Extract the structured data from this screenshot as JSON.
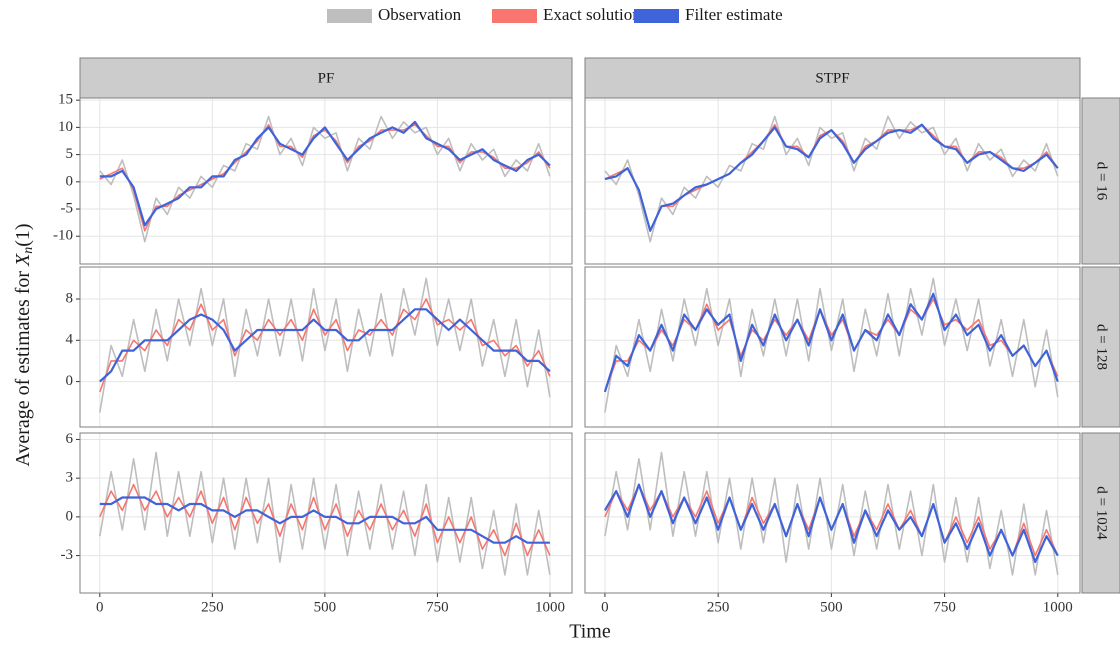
{
  "legend": [
    {
      "name": "Observation",
      "color": "#bebebe"
    },
    {
      "name": "Exact solution",
      "color": "#f8766d"
    },
    {
      "name": "Filter estimate",
      "color": "#3f63d9"
    }
  ],
  "x_label": "Time",
  "y_label": [
    "Average of estimates for ",
    "X",
    "n",
    "(1)"
  ],
  "columns": [
    "PF",
    "STPF"
  ],
  "rows": [
    "d = 16",
    "d = 128",
    "d = 1024"
  ],
  "x": [
    0,
    25,
    50,
    75,
    100,
    125,
    150,
    175,
    200,
    225,
    250,
    275,
    300,
    325,
    350,
    375,
    400,
    425,
    450,
    475,
    500,
    525,
    550,
    575,
    600,
    625,
    650,
    675,
    700,
    725,
    750,
    775,
    800,
    825,
    850,
    875,
    900,
    925,
    950,
    975,
    1000
  ],
  "xlim": [
    -44,
    1049
  ],
  "xticks": [
    0,
    250,
    500,
    750,
    1000
  ],
  "chart_data": [
    {
      "type": "line",
      "ylim": [
        -15.1,
        15.4
      ],
      "yticks": [
        -10,
        -5,
        0,
        5,
        10,
        15
      ],
      "series": [
        {
          "values": [
            2,
            -0.5,
            4,
            -2.5,
            -11,
            -3,
            -6,
            -1,
            -3,
            1,
            -1,
            3,
            2,
            7,
            6,
            12,
            5,
            8,
            3,
            10,
            8,
            9,
            2,
            8,
            6,
            12,
            8,
            11,
            9,
            10,
            5,
            8,
            2,
            7,
            4,
            6,
            1,
            4,
            2,
            7,
            1
          ]
        },
        {
          "values": [
            0.5,
            1.5,
            2.5,
            -1.5,
            -9,
            -4.5,
            -4.5,
            -2.5,
            -1.5,
            -0.5,
            0.5,
            1.5,
            3.5,
            5.5,
            7.5,
            10.5,
            6.5,
            6.5,
            4.5,
            8.5,
            9.5,
            7.5,
            3.5,
            6.5,
            7.5,
            9.5,
            9.5,
            9.5,
            10.5,
            8.5,
            6.5,
            6.5,
            3.5,
            5.5,
            5.5,
            4.5,
            2.5,
            2.5,
            3.5,
            5.5,
            2.5
          ]
        },
        {
          "values": [
            1,
            1,
            2,
            -1,
            -8,
            -5,
            -4,
            -3,
            -1,
            -1,
            1,
            1,
            4,
            5,
            8,
            10,
            7,
            6,
            5,
            8,
            10,
            7,
            4,
            6,
            8,
            9,
            10,
            9,
            11,
            8,
            7,
            6,
            4,
            5,
            6,
            4,
            3,
            2,
            4,
            5,
            3
          ]
        }
      ]
    },
    {
      "type": "line",
      "ylim": [
        -15.1,
        15.4
      ],
      "yticks": [
        -10,
        -5,
        0,
        5,
        10,
        15
      ],
      "series": [
        {
          "values": [
            2,
            -0.5,
            4,
            -2.5,
            -11,
            -3,
            -6,
            -1,
            -3,
            1,
            -1,
            3,
            2,
            7,
            6,
            12,
            5,
            8,
            3,
            10,
            8,
            9,
            2,
            8,
            6,
            12,
            8,
            11,
            9,
            10,
            5,
            8,
            2,
            7,
            4,
            6,
            1,
            4,
            2,
            7,
            1
          ]
        },
        {
          "values": [
            0.5,
            1.5,
            2.5,
            -1.5,
            -9,
            -4.5,
            -4.5,
            -2.5,
            -1.5,
            -0.5,
            0.5,
            1.5,
            3.5,
            5.5,
            7.5,
            10.5,
            6.5,
            6.5,
            4.5,
            8.5,
            9.5,
            7.5,
            3.5,
            6.5,
            7.5,
            9.5,
            9.5,
            9.5,
            10.5,
            8.5,
            6.5,
            6.5,
            3.5,
            5.5,
            5.5,
            4.5,
            2.5,
            2.5,
            3.5,
            5.5,
            2.5
          ]
        },
        {
          "values": [
            0.5,
            1,
            2.5,
            -1.5,
            -9,
            -4.5,
            -4,
            -2.5,
            -1,
            -0.5,
            0.5,
            1.5,
            3.5,
            5,
            7.5,
            10,
            6.5,
            6,
            4.5,
            8,
            9.5,
            7,
            3.5,
            6,
            7.5,
            9,
            9.5,
            9,
            10.5,
            8,
            6.5,
            6,
            3.5,
            5,
            5.5,
            4,
            2.5,
            2,
            3.5,
            5,
            2.5
          ]
        }
      ]
    },
    {
      "type": "line",
      "ylim": [
        -4.4,
        11.1
      ],
      "yticks": [
        0,
        4,
        8
      ],
      "series": [
        {
          "values": [
            -3,
            3.5,
            0.5,
            6,
            1,
            7,
            2,
            8,
            3.5,
            9,
            3.5,
            8,
            0.5,
            7,
            2.5,
            8,
            2.5,
            8,
            2,
            9,
            3,
            8,
            1,
            7,
            2.5,
            8.5,
            2.5,
            9,
            4.5,
            10,
            3.5,
            8,
            3,
            8,
            1.5,
            6,
            0.5,
            6,
            -0.5,
            5,
            -1.5
          ]
        },
        {
          "values": [
            -1,
            2,
            2,
            4,
            3,
            5,
            3.5,
            6,
            5,
            7.5,
            5,
            6,
            2.5,
            5,
            4,
            6,
            4.5,
            6,
            4,
            7,
            4.5,
            6,
            3,
            5,
            4.5,
            6,
            4.5,
            7,
            6,
            8,
            5.5,
            6,
            5,
            6,
            3.5,
            4,
            2.5,
            3.5,
            1.5,
            3,
            0.5
          ]
        },
        {
          "values": [
            0,
            1,
            3,
            3,
            4,
            4,
            4,
            5,
            6,
            6.5,
            6,
            5,
            3,
            4,
            5,
            5,
            5,
            5,
            5,
            6,
            5,
            5,
            4,
            4,
            5,
            5,
            5,
            6,
            7,
            7,
            6,
            5,
            6,
            5,
            4,
            3,
            3,
            3,
            2,
            2,
            1
          ]
        }
      ]
    },
    {
      "type": "line",
      "ylim": [
        -4.4,
        11.1
      ],
      "yticks": [
        0,
        4,
        8
      ],
      "series": [
        {
          "values": [
            -3,
            3.5,
            0.5,
            6,
            1,
            7,
            2,
            8,
            3.5,
            9,
            3.5,
            8,
            0.5,
            7,
            2.5,
            8,
            2.5,
            8,
            2,
            9,
            3,
            8,
            1,
            7,
            2.5,
            8.5,
            2.5,
            9,
            4.5,
            10,
            3.5,
            8,
            3,
            8,
            1.5,
            6,
            0.5,
            6,
            -0.5,
            5,
            -1.5
          ]
        },
        {
          "values": [
            -1,
            2,
            2,
            4,
            3,
            5,
            3.5,
            6,
            5,
            7.5,
            5,
            6,
            2.5,
            5,
            4,
            6,
            4.5,
            6,
            4,
            7,
            4.5,
            6,
            3,
            5,
            4.5,
            6,
            4.5,
            7,
            6,
            8,
            5.5,
            6,
            5,
            6,
            3.5,
            4,
            2.5,
            3.5,
            1.5,
            3,
            0.5
          ]
        },
        {
          "values": [
            -1,
            2.5,
            1.5,
            4.5,
            3,
            5.5,
            3,
            6.5,
            5,
            7,
            5.5,
            6.5,
            2,
            5.5,
            3.5,
            6.5,
            4,
            6,
            3.5,
            7,
            4,
            6.5,
            3,
            5,
            4,
            6.5,
            4.5,
            7.5,
            6,
            8.5,
            5,
            6.5,
            4.5,
            5.5,
            3,
            4.5,
            2.5,
            3.5,
            1.5,
            3,
            0
          ]
        }
      ]
    },
    {
      "type": "line",
      "ylim": [
        -5.9,
        6.5
      ],
      "yticks": [
        -3,
        0,
        3,
        6
      ],
      "series": [
        {
          "values": [
            -1.5,
            3.5,
            -1,
            4.5,
            -1,
            5,
            -1.5,
            3.5,
            -1.5,
            3.5,
            -2,
            3,
            -2.5,
            3,
            -2,
            3,
            -3.5,
            2.5,
            -2.5,
            3,
            -2.5,
            2.5,
            -3,
            2,
            -2.5,
            2.5,
            -2.5,
            2,
            -3,
            2.5,
            -3.5,
            1.5,
            -3.5,
            1.5,
            -4,
            0.5,
            -4.5,
            1,
            -4.5,
            0.5,
            -4.5
          ]
        },
        {
          "values": [
            0,
            2,
            0.5,
            2.5,
            0.5,
            2,
            0,
            1.5,
            0,
            2,
            -0.5,
            1.5,
            -1,
            1.5,
            -0.5,
            1,
            -1.5,
            1,
            -1,
            1.5,
            -1,
            1,
            -1.5,
            0.5,
            -1,
            1,
            -1,
            0.5,
            -1.5,
            1,
            -2,
            0,
            -2,
            0,
            -2.5,
            -1,
            -3,
            -0.5,
            -3,
            -1,
            -3
          ]
        },
        {
          "values": [
            1,
            1,
            1.5,
            1.5,
            1.5,
            1,
            1,
            0.5,
            1,
            1,
            0.5,
            0.5,
            0,
            0.5,
            0.5,
            0,
            -0.5,
            0,
            0,
            0.5,
            0,
            0,
            -0.5,
            -0.5,
            0,
            0,
            0,
            -0.5,
            -0.5,
            0,
            -1,
            -1,
            -1,
            -1,
            -1.5,
            -2,
            -2,
            -1.5,
            -2,
            -2,
            -2
          ]
        }
      ]
    },
    {
      "type": "line",
      "ylim": [
        -5.9,
        6.5
      ],
      "yticks": [
        -3,
        0,
        3,
        6
      ],
      "series": [
        {
          "values": [
            -1.5,
            3.5,
            -1,
            4.5,
            -1,
            5,
            -1.5,
            3.5,
            -1.5,
            3.5,
            -2,
            3,
            -2.5,
            3,
            -2,
            3,
            -3.5,
            2.5,
            -2.5,
            3,
            -2.5,
            2.5,
            -3,
            2,
            -2.5,
            2.5,
            -2.5,
            2,
            -3,
            2.5,
            -3.5,
            1.5,
            -3.5,
            1.5,
            -4,
            0.5,
            -4.5,
            1,
            -4.5,
            0.5,
            -4.5
          ]
        },
        {
          "values": [
            0,
            2,
            0.5,
            2.5,
            0.5,
            2,
            0,
            1.5,
            0,
            2,
            -0.5,
            1.5,
            -1,
            1.5,
            -0.5,
            1,
            -1.5,
            1,
            -1,
            1.5,
            -1,
            1,
            -1.5,
            0.5,
            -1,
            1,
            -1,
            0.5,
            -1.5,
            1,
            -2,
            0,
            -2,
            0,
            -2.5,
            -1,
            -3,
            -0.5,
            -3,
            -1,
            -3
          ]
        },
        {
          "values": [
            0.5,
            2,
            0,
            2.5,
            0,
            2,
            -0.5,
            1.5,
            -0.5,
            1.5,
            -1,
            1.5,
            -1,
            1,
            -1,
            1,
            -1.5,
            1,
            -1.5,
            1.5,
            -1,
            1,
            -2,
            0.5,
            -1.5,
            0.5,
            -1,
            0,
            -1.5,
            1,
            -2,
            -0.5,
            -2.5,
            -0.5,
            -3,
            -1,
            -3,
            -1,
            -3.5,
            -1.5,
            -3
          ]
        }
      ]
    }
  ]
}
